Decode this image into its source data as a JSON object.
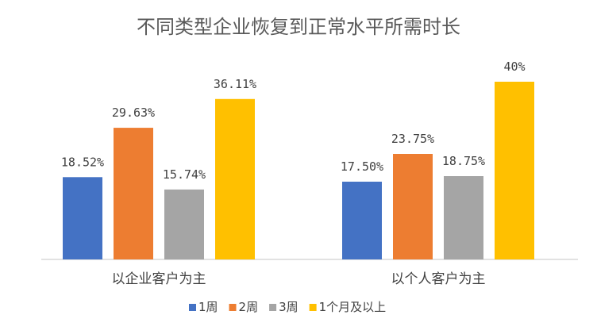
{
  "chart_data": {
    "type": "bar",
    "title": "不同类型企业恢复到正常水平所需时长",
    "categories": [
      "以企业客户为主",
      "以个人客户为主"
    ],
    "series": [
      {
        "name": "1周",
        "color": "#4472C4",
        "values": [
          18.52,
          17.5
        ],
        "labels": [
          "18.52%",
          "17.50%"
        ]
      },
      {
        "name": "2周",
        "color": "#ED7D31",
        "values": [
          29.63,
          23.75
        ],
        "labels": [
          "29.63%",
          "23.75%"
        ]
      },
      {
        "name": "3周",
        "color": "#A5A5A5",
        "values": [
          15.74,
          18.75
        ],
        "labels": [
          "15.74%",
          "18.75%"
        ]
      },
      {
        "name": "1个月及以上",
        "color": "#FFC000",
        "values": [
          36.11,
          40.0
        ],
        "labels": [
          "36.11%",
          "40%"
        ]
      }
    ],
    "ylim": [
      0,
      40
    ],
    "legend_position": "bottom",
    "grid": false
  }
}
